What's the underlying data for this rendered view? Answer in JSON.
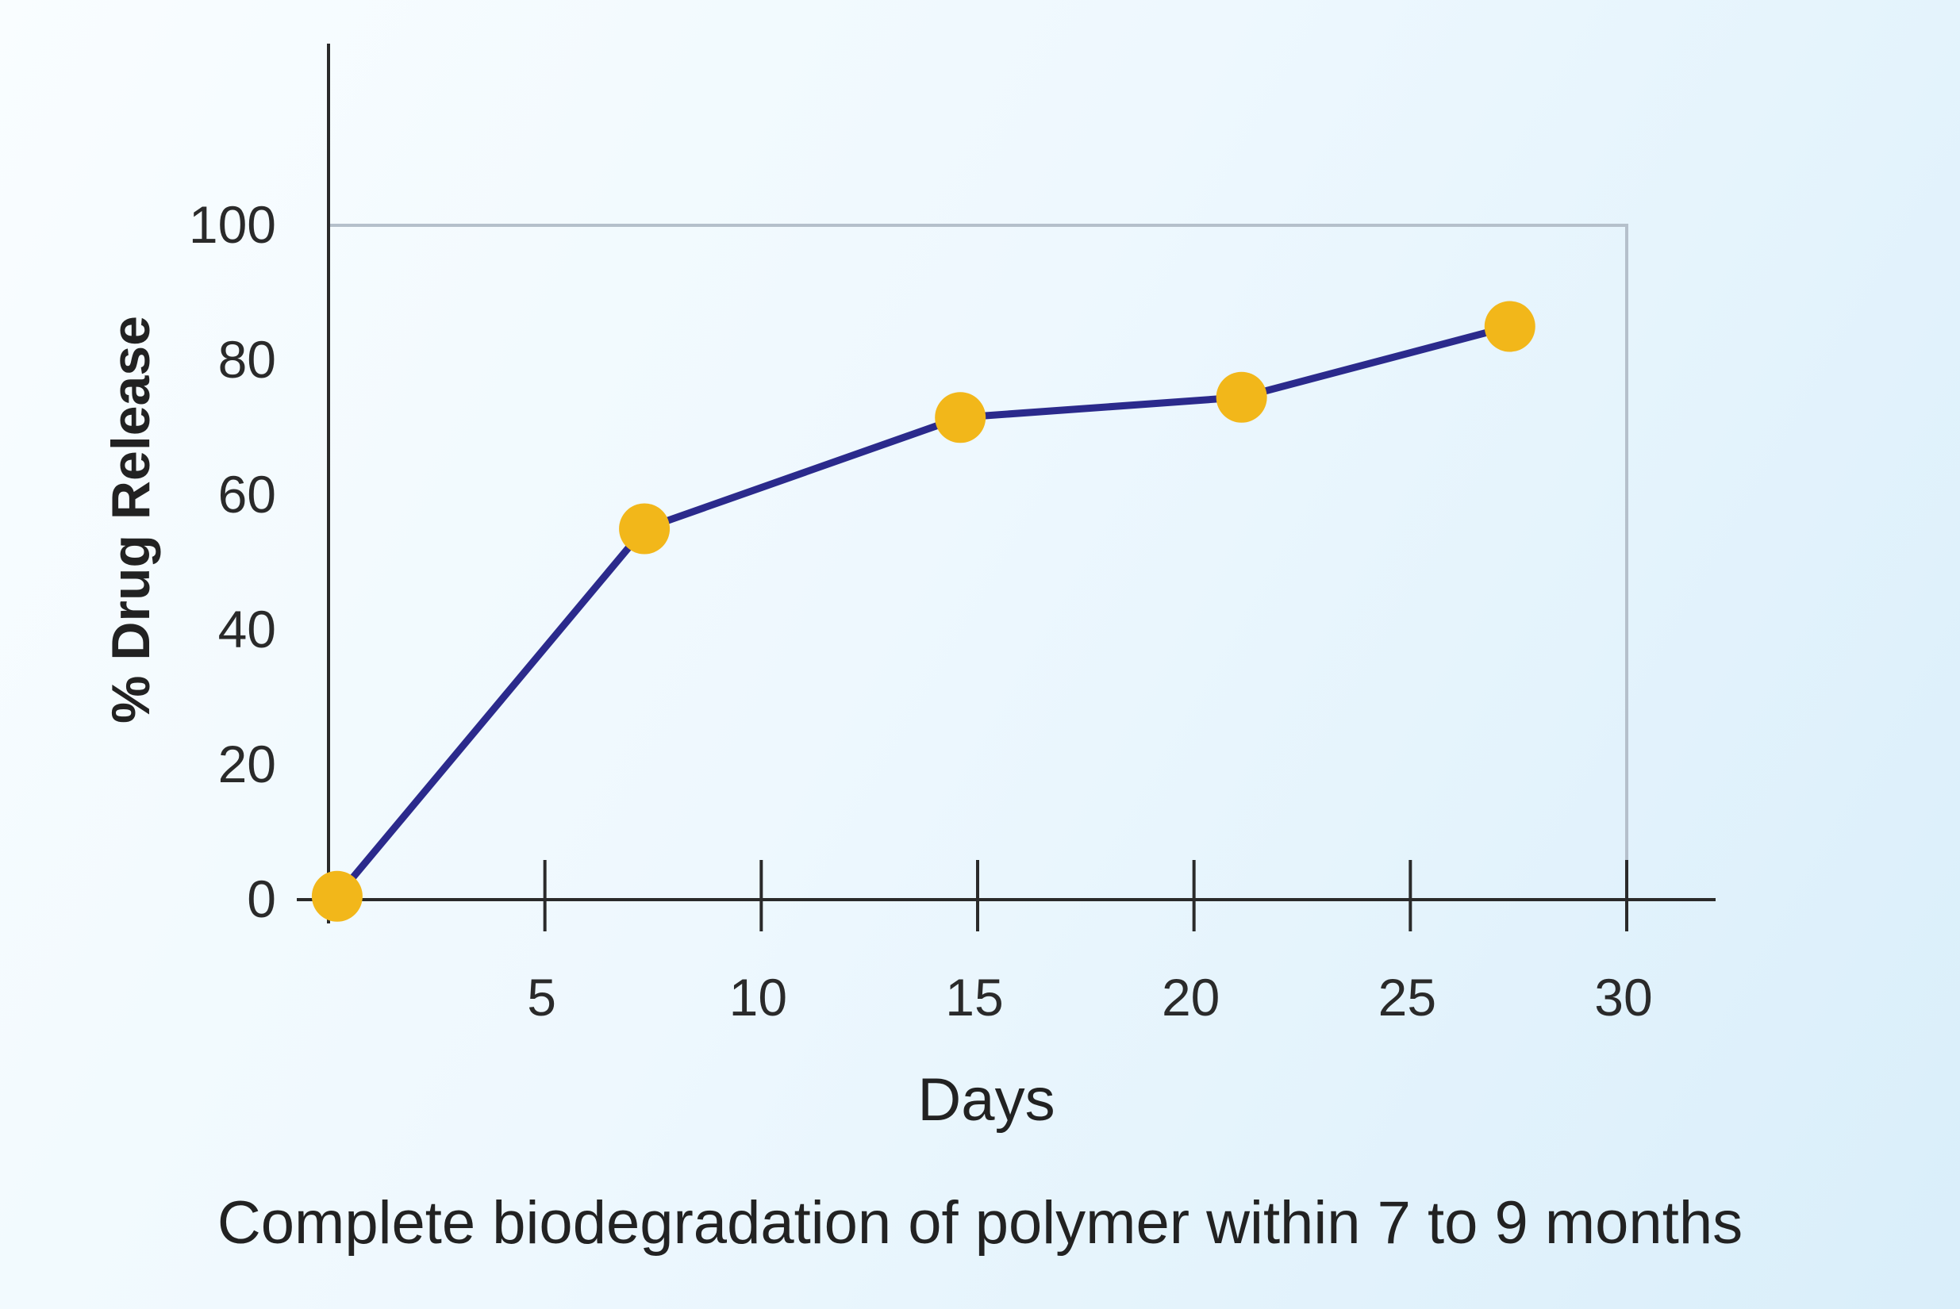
{
  "chart_data": {
    "type": "line",
    "xlabel": "Days",
    "ylabel": "% Drug Release",
    "xlim": [
      0,
      30
    ],
    "ylim": [
      0,
      100
    ],
    "x_ticks": [
      5,
      10,
      15,
      20,
      25,
      30
    ],
    "y_ticks": [
      0,
      20,
      40,
      60,
      80,
      100
    ],
    "grid": false,
    "series": [
      {
        "x": [
          0.2,
          7.3,
          14.6,
          21.1,
          27.3
        ],
        "y": [
          0.5,
          55,
          71.5,
          74.5,
          85
        ]
      }
    ],
    "colors": {
      "line": "#2b2a8c",
      "marker": "#f2b71a",
      "axis": "#2a2a2a",
      "frame": "#b5c0cb"
    }
  },
  "caption": "Complete biodegradation of polymer within 7 to 9 months"
}
